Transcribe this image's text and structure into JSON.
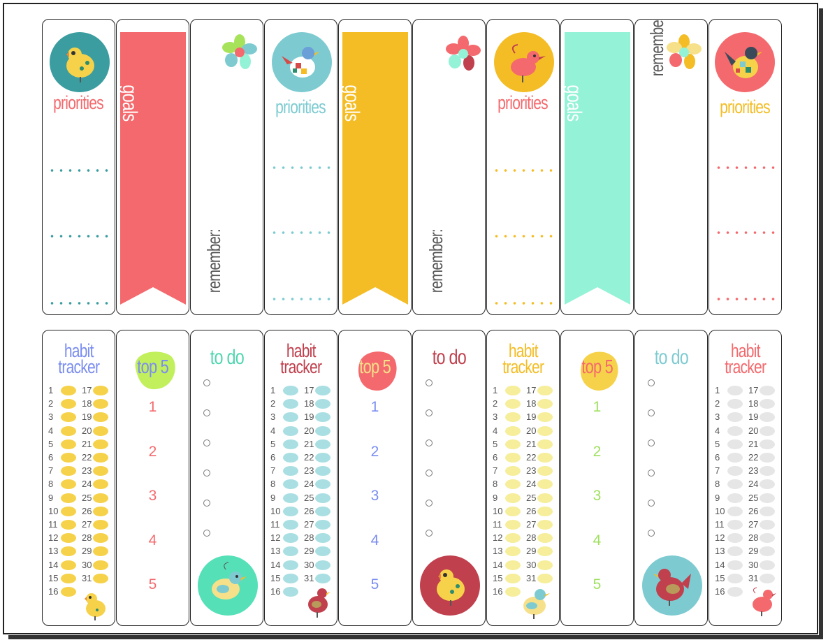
{
  "labels": {
    "priorities": "priorities",
    "goals": "goals",
    "remember": "remember:",
    "habit_line1": "habit",
    "habit_line2": "tracker",
    "top5": "top 5",
    "todo": "to do"
  },
  "top5_numbers": [
    "1",
    "2",
    "3",
    "4",
    "5"
  ],
  "habit_days_left": [
    "1",
    "2",
    "3",
    "4",
    "5",
    "6",
    "7",
    "8",
    "9",
    "10",
    "11",
    "12",
    "13",
    "14",
    "15",
    "16"
  ],
  "habit_days_right": [
    "17",
    "18",
    "19",
    "20",
    "21",
    "22",
    "23",
    "24",
    "25",
    "26",
    "27",
    "28",
    "29",
    "30",
    "31"
  ],
  "colors": {
    "teal": "#3b9da0",
    "coral": "#f4696d",
    "yellow": "#f4bd26",
    "mint": "#94f2d6",
    "blue": "#7a8df0",
    "lightblue": "#7dcbd1",
    "darkred": "#c0404d",
    "green": "#a0e060",
    "gray": "#e3e3e3"
  },
  "icons": [
    "yellow-chick-icon",
    "patchwork-bird-icon",
    "red-bird-icon",
    "hen-icon",
    "flower-icon",
    "blue-chick-icon"
  ]
}
